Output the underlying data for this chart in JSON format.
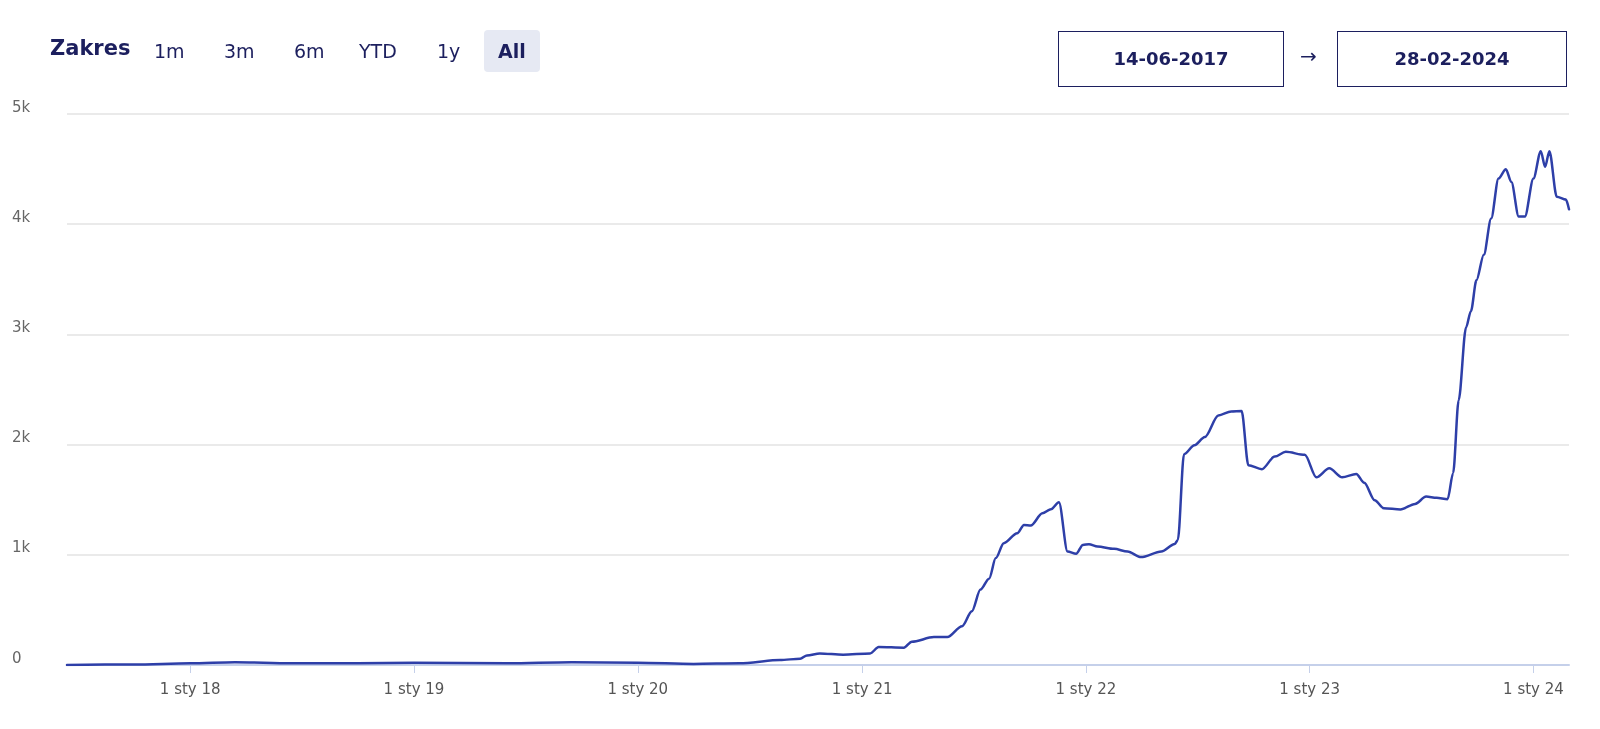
{
  "chart_data": {
    "type": "line",
    "annotations": [
      "Zakres",
      "1m",
      "3m",
      "6m",
      "YTD",
      "1y",
      "All",
      "14-06-2017",
      "→",
      "28-02-2024"
    ],
    "x": [
      "2017-06-14",
      "2017-10-01",
      "2018-01-01",
      "2018-03-15",
      "2018-06-15",
      "2018-10-01",
      "2019-01-01",
      "2019-06-01",
      "2019-09-15",
      "2020-01-01",
      "2020-04-01",
      "2020-06-15",
      "2020-08-20",
      "2020-09-22",
      "2020-10-03",
      "2020-10-24",
      "2020-12-01",
      "2021-01-14",
      "2021-01-28",
      "2021-03-10",
      "2021-03-23",
      "2021-04-28",
      "2021-05-20",
      "2021-06-13",
      "2021-06-29",
      "2021-07-13",
      "2021-07-27",
      "2021-08-07",
      "2021-08-20",
      "2021-09-11",
      "2021-09-22",
      "2021-10-03",
      "2021-10-22",
      "2021-11-05",
      "2021-11-18",
      "2021-12-02",
      "2021-12-16",
      "2021-12-27",
      "2022-01-06",
      "2022-01-20",
      "2022-02-16",
      "2022-03-10",
      "2022-04-01",
      "2022-05-04",
      "2022-05-26",
      "2022-05-31",
      "2022-06-10",
      "2022-06-27",
      "2022-07-14",
      "2022-08-05",
      "2022-08-26",
      "2022-09-12",
      "2022-09-23",
      "2022-10-15",
      "2022-11-05",
      "2022-11-23",
      "2022-12-24",
      "2023-01-12",
      "2023-02-02",
      "2023-02-23",
      "2023-03-18",
      "2023-03-31",
      "2023-04-17",
      "2023-05-02",
      "2023-05-29",
      "2023-06-22",
      "2023-07-10",
      "2023-07-27",
      "2023-08-14",
      "2023-08-23",
      "2023-09-01",
      "2023-09-13",
      "2023-09-21",
      "2023-09-30",
      "2023-10-12",
      "2023-10-24",
      "2023-11-05",
      "2023-11-17",
      "2023-11-26",
      "2023-12-08",
      "2023-12-18",
      "2024-01-01",
      "2024-01-13",
      "2024-01-20",
      "2024-01-27",
      "2024-02-08",
      "2024-02-23",
      "2024-02-28"
    ],
    "series": [
      {
        "color": "#2e3fa8",
        "values": [
          0,
          5,
          15,
          25,
          15,
          15,
          20,
          15,
          25,
          20,
          10,
          15,
          45,
          57,
          87,
          105,
          93,
          105,
          163,
          157,
          211,
          253,
          253,
          352,
          488,
          684,
          783,
          970,
          1105,
          1196,
          1271,
          1265,
          1376,
          1413,
          1476,
          1030,
          1009,
          1090,
          1096,
          1075,
          1054,
          1030,
          979,
          1030,
          1099,
          1135,
          1913,
          1994,
          2069,
          2265,
          2301,
          2304,
          1813,
          1777,
          1891,
          1934,
          1907,
          1703,
          1785,
          1703,
          1733,
          1653,
          1495,
          1422,
          1412,
          1462,
          1528,
          1518,
          1505,
          1742,
          2402,
          3062,
          3211,
          3491,
          3722,
          4052,
          4415,
          4498,
          4382,
          4069,
          4069,
          4415,
          4663,
          4521,
          4663,
          4250,
          4224,
          4135
        ]
      }
    ],
    "xlim": [
      "2017-06-14",
      "2024-02-28"
    ],
    "xticks": [
      {
        "value": "2018-01-01",
        "label": "1 sty 18"
      },
      {
        "value": "2019-01-01",
        "label": "1 sty 19"
      },
      {
        "value": "2020-01-01",
        "label": "1 sty 20"
      },
      {
        "value": "2021-01-01",
        "label": "1 sty 21"
      },
      {
        "value": "2022-01-01",
        "label": "1 sty 22"
      },
      {
        "value": "2023-01-01",
        "label": "1 sty 23"
      },
      {
        "value": "2024-01-01",
        "label": "1 sty 24"
      }
    ],
    "ylim": [
      0,
      5000
    ],
    "yticks": [
      0,
      {
        "value": 1000,
        "label": "1k"
      },
      {
        "value": 2000,
        "label": "2k"
      },
      {
        "value": 3000,
        "label": "3k"
      },
      {
        "value": 4000,
        "label": "4k"
      },
      {
        "value": 5000,
        "label": "5k"
      }
    ],
    "grid": "y",
    "marker": "none",
    "line_style": "solid"
  }
}
